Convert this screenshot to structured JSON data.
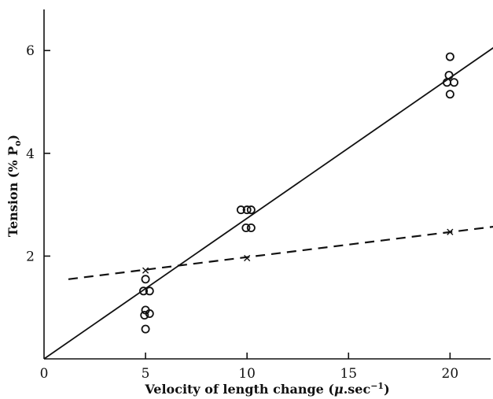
{
  "chart_data": {
    "type": "scatter",
    "title": "",
    "xlabel_prefix": "Velocity of length change (",
    "xlabel_mu": "μ",
    "xlabel_unit": ".sec",
    "xlabel_exp": "−1",
    "xlabel_suffix": ")",
    "ylabel_prefix": "Tension (% P",
    "ylabel_sub": "o",
    "ylabel_suffix": ")",
    "xlim": [
      0,
      22
    ],
    "ylim": [
      0,
      6.8
    ],
    "x_ticks": [
      0,
      5,
      10,
      15,
      20
    ],
    "y_ticks": [
      2,
      4,
      6
    ],
    "grid": false,
    "series": [
      {
        "marker": "circle",
        "points": [
          [
            5.0,
            1.55
          ],
          [
            4.9,
            1.32
          ],
          [
            5.2,
            1.32
          ],
          [
            5.0,
            0.95
          ],
          [
            5.2,
            0.88
          ],
          [
            4.95,
            0.85
          ],
          [
            5.0,
            0.58
          ],
          [
            9.7,
            2.9
          ],
          [
            10.0,
            2.9
          ],
          [
            10.2,
            2.9
          ],
          [
            9.95,
            2.55
          ],
          [
            10.2,
            2.55
          ],
          [
            20.0,
            5.88
          ],
          [
            19.95,
            5.52
          ],
          [
            19.85,
            5.38
          ],
          [
            20.2,
            5.38
          ],
          [
            20.0,
            5.15
          ]
        ]
      },
      {
        "marker": "cross",
        "points": [
          [
            5.0,
            1.72
          ],
          [
            10.0,
            1.96
          ],
          [
            20.0,
            2.47
          ]
        ]
      }
    ],
    "fit_lines": [
      {
        "style": "solid",
        "x": [
          0,
          22.3
        ],
        "y": [
          0,
          6.1
        ]
      },
      {
        "style": "dashed",
        "x": [
          1.2,
          22.3
        ],
        "y": [
          1.55,
          2.58
        ]
      }
    ]
  }
}
